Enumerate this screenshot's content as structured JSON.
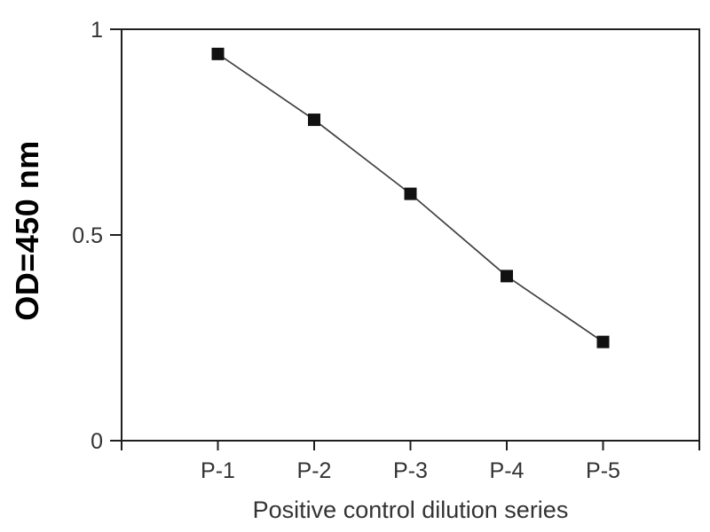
{
  "chart_data": {
    "type": "line",
    "title": "",
    "xlabel": "Positive control dilution series",
    "ylabel": "OD=450 nm",
    "categories": [
      "P-1",
      "P-2",
      "P-3",
      "P-4",
      "P-5"
    ],
    "values": [
      0.94,
      0.78,
      0.6,
      0.4,
      0.24
    ],
    "ylim": [
      0,
      1
    ],
    "yticks": [
      {
        "value": 0,
        "label": "0"
      },
      {
        "value": 0.5,
        "label": "0.5"
      },
      {
        "value": 1,
        "label": "1"
      }
    ],
    "grid": false,
    "legend": "none",
    "marker": "square",
    "colors": {
      "line": "#3f3f3f",
      "marker": "#111111",
      "axis": "#1f1f1f",
      "tick_text": "#333333",
      "axis_title": "#000000",
      "background": "#ffffff"
    }
  }
}
